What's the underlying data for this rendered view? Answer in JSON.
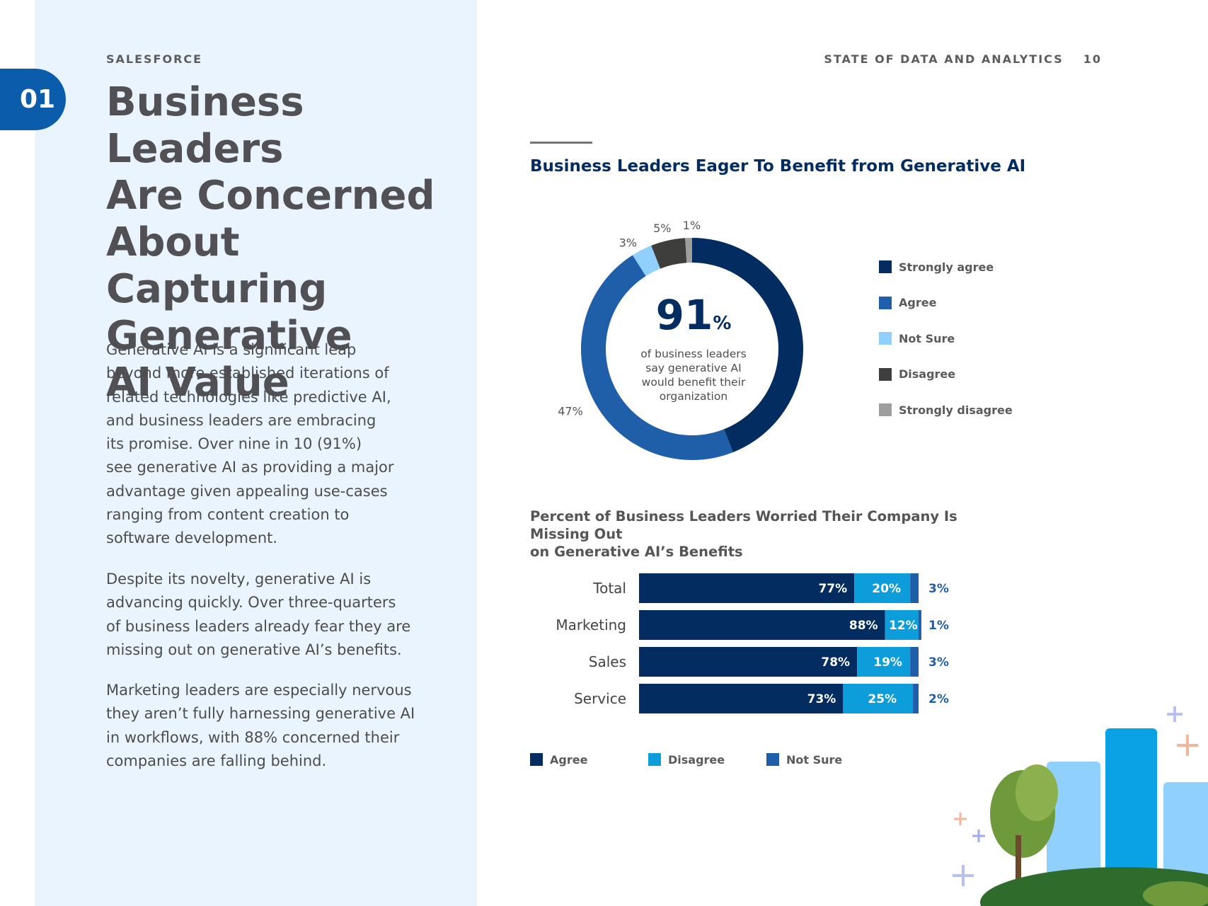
{
  "header": {
    "brand": "SALESFORCE",
    "report_title": "STATE OF DATA AND ANALYTICS",
    "page_number": "10"
  },
  "chapter": {
    "number": "01"
  },
  "headline": [
    "Business Leaders",
    "Are Concerned",
    "About Capturing",
    "Generative",
    "AI Value"
  ],
  "paragraphs": [
    [
      "Generative AI is a significant leap",
      "beyond more established iterations of",
      "related technologies like predictive AI,",
      "and business leaders are embracing",
      "its promise. Over nine in 10 (91%)",
      "see generative AI as providing a major",
      "advantage given appealing use-cases",
      "ranging from content creation to",
      "software development."
    ],
    [
      "Despite its novelty, generative AI is",
      "advancing quickly. Over three-quarters",
      "of business leaders already fear they are",
      "missing out on generative AI’s benefits."
    ],
    [
      "Marketing leaders are especially nervous",
      "they aren’t fully harnessing generative AI",
      "in workflows, with 88% concerned their",
      "companies are falling behind."
    ]
  ],
  "chart_data": [
    {
      "type": "pie",
      "title": "Business Leaders Eager To Benefit from Generative AI",
      "categories": [
        "Strongly agree",
        "Agree",
        "Not Sure",
        "Disagree",
        "Strongly disagree"
      ],
      "values": [
        44,
        47,
        3,
        5,
        1
      ],
      "labels": [
        "44%",
        "47%",
        "3%",
        "5%",
        "1%"
      ],
      "colors": [
        "#032d60",
        "#1f5ea8",
        "#90d0fe",
        "#3e3e3c",
        "#9e9e9e"
      ],
      "center_value": "91",
      "center_unit": "%",
      "center_caption": [
        "of business leaders",
        "say generative AI",
        "would benefit their",
        "organization"
      ],
      "legend_position": "right"
    },
    {
      "type": "bar",
      "orientation": "horizontal-stacked",
      "title": [
        "Percent of Business Leaders Worried Their Company Is Missing Out",
        "on Generative AI’s Benefits"
      ],
      "categories": [
        "Total",
        "Marketing",
        "Sales",
        "Service"
      ],
      "series": [
        {
          "name": "Agree",
          "values": [
            77,
            88,
            78,
            73
          ],
          "labels": [
            "77%",
            "88%",
            "78%",
            "73%"
          ],
          "color": "#032d60"
        },
        {
          "name": "Disagree",
          "values": [
            20,
            12,
            19,
            25
          ],
          "labels": [
            "20%",
            "12%",
            "19%",
            "25%"
          ],
          "color": "#0d9dda"
        },
        {
          "name": "Not Sure",
          "values": [
            3,
            1,
            3,
            2
          ],
          "labels": [
            "3%",
            "1%",
            "3%",
            "2%"
          ],
          "color": "#1f5ea8"
        }
      ],
      "legend_position": "bottom"
    }
  ]
}
